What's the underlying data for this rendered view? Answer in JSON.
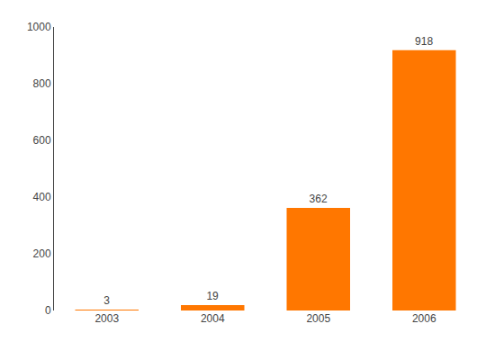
{
  "chart_data": {
    "type": "bar",
    "categories": [
      "2003",
      "2004",
      "2005",
      "2006"
    ],
    "values": [
      3,
      19,
      362,
      918
    ],
    "color": "#FF7700",
    "data_labels": true,
    "ylim": [
      0,
      1000
    ],
    "yticks": [
      0,
      200,
      400,
      600,
      800,
      1000
    ],
    "grid": false
  }
}
